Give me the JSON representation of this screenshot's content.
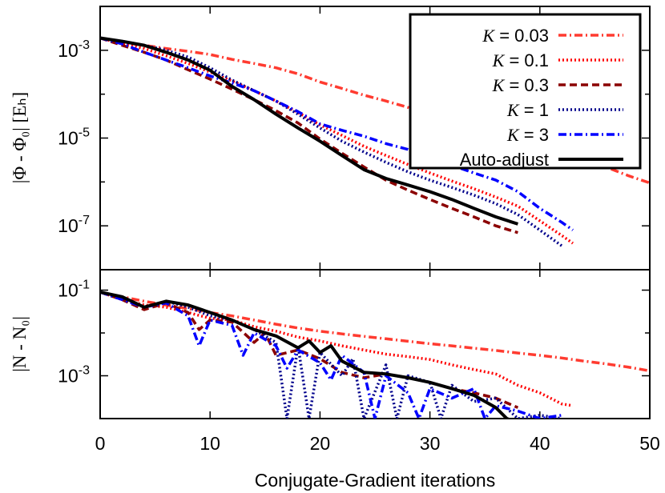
{
  "chart_data": [
    {
      "type": "line",
      "title": "",
      "ylabel": "|Φ - Φ₀| [Eₕ]",
      "yscale": "log",
      "xlim": [
        0,
        50
      ],
      "ylim": [
        1e-08,
        0.01
      ],
      "ytick_labels": [
        "10-3",
        "10-5",
        "10-7"
      ],
      "ytick_values": [
        0.001,
        1e-05,
        1e-07
      ],
      "legend_position": "top-right",
      "series": [
        {
          "name": "K = 0.03",
          "color": "#ff3b30",
          "dash": "dash-dot",
          "x": [
            0,
            2,
            4,
            6,
            8,
            10,
            12,
            14,
            16,
            18,
            20,
            22,
            24,
            26,
            28,
            30,
            32,
            34,
            36,
            38,
            40,
            42,
            44,
            46,
            48,
            50
          ],
          "y": [
            0.0019,
            0.0015,
            0.0013,
            0.0011,
            0.00095,
            0.0008,
            0.00062,
            0.0005,
            0.0004,
            0.00029,
            0.00019,
            0.000135,
            9.5e-05,
            7e-05,
            5e-05,
            3.5e-05,
            2.7e-05,
            2e-05,
            1.45e-05,
            1.05e-05,
            7.5e-06,
            5.3e-06,
            3.5e-06,
            2.2e-06,
            1.4e-06,
            9.5e-07
          ]
        },
        {
          "name": "K = 0.1",
          "color": "#ff0000",
          "dash": "dotted",
          "x": [
            0,
            2,
            4,
            6,
            8,
            10,
            12,
            14,
            16,
            18,
            20,
            22,
            24,
            26,
            28,
            30,
            32,
            34,
            36,
            38,
            40,
            42,
            43
          ],
          "y": [
            0.0019,
            0.0014,
            0.0011,
            0.00075,
            0.0005,
            0.00032,
            0.0002,
            0.00012,
            7e-05,
            3.8e-05,
            2e-05,
            1.15e-05,
            6.5e-06,
            4e-06,
            2.5e-06,
            1.6e-06,
            1.05e-06,
            7e-07,
            4.5e-07,
            2.8e-07,
            1.3e-07,
            6e-08,
            4e-08
          ]
        },
        {
          "name": "K = 0.3",
          "color": "#8b0000",
          "dash": "dashed",
          "x": [
            0,
            2,
            4,
            6,
            8,
            10,
            12,
            14,
            16,
            18,
            20,
            22,
            24,
            26,
            28,
            30,
            32,
            34,
            36,
            38
          ],
          "y": [
            0.0019,
            0.0013,
            0.0009,
            0.0006,
            0.00036,
            0.00022,
            0.00013,
            7.5e-05,
            4.2e-05,
            2.2e-05,
            9.5e-06,
            4.5e-06,
            2.2e-06,
            1.1e-06,
            6.5e-07,
            4e-07,
            2.5e-07,
            1.6e-07,
            1e-07,
            7e-08
          ]
        },
        {
          "name": "K = 1",
          "color": "#00008b",
          "dash": "dotted",
          "x": [
            0,
            2,
            4,
            6,
            8,
            10,
            12,
            14,
            16,
            18,
            20,
            22,
            24,
            26,
            28,
            30,
            32,
            34,
            36,
            38,
            40,
            42
          ],
          "y": [
            0.0019,
            0.0016,
            0.0013,
            0.001,
            0.0007,
            0.0004,
            0.00021,
            0.00012,
            7e-05,
            3.5e-05,
            1.7e-05,
            8.5e-06,
            4.8e-06,
            2.8e-06,
            1.7e-06,
            1.1e-06,
            7.5e-07,
            5e-07,
            3.2e-07,
            1.8e-07,
            8e-08,
            3.5e-08
          ]
        },
        {
          "name": "K = 3",
          "color": "#0000ff",
          "dash": "dash-dot",
          "x": [
            0,
            2,
            4,
            6,
            8,
            10,
            12,
            14,
            16,
            18,
            20,
            22,
            24,
            26,
            28,
            30,
            32,
            34,
            36,
            38,
            40,
            42,
            43
          ],
          "y": [
            0.0019,
            0.0014,
            0.0009,
            0.0006,
            0.0004,
            0.00026,
            0.00018,
            0.00012,
            7e-05,
            4e-05,
            2.1e-05,
            1.5e-05,
            1.1e-05,
            7.5e-06,
            5.5e-06,
            3.5e-06,
            2.4e-06,
            1.6e-06,
            1.1e-06,
            6e-07,
            2.5e-07,
            1.2e-07,
            8e-08
          ]
        },
        {
          "name": "Auto-adjust",
          "color": "#000000",
          "dash": "solid",
          "x": [
            0,
            2,
            4,
            6,
            8,
            10,
            12,
            14,
            16,
            18,
            20,
            22,
            24,
            26,
            28,
            30,
            32,
            34,
            36,
            38
          ],
          "y": [
            0.0019,
            0.0016,
            0.0013,
            0.0009,
            0.0006,
            0.00035,
            0.00015,
            7.5e-05,
            3.5e-05,
            1.7e-05,
            8.5e-06,
            4e-06,
            1.9e-06,
            1.2e-06,
            8.5e-07,
            6e-07,
            4e-07,
            2.5e-07,
            1.6e-07,
            1.1e-07
          ]
        }
      ]
    },
    {
      "type": "line",
      "title": "",
      "xlabel": "Conjugate-Gradient iterations",
      "ylabel": "|N - N₀|",
      "yscale": "log",
      "xlim": [
        0,
        50
      ],
      "ylim": [
        0.0001,
        0.3
      ],
      "xtick_labels": [
        "0",
        "10",
        "20",
        "30",
        "40",
        "50"
      ],
      "xtick_values": [
        0,
        10,
        20,
        30,
        40,
        50
      ],
      "ytick_labels": [
        "10-1",
        "10-3"
      ],
      "ytick_values": [
        0.1,
        0.001
      ],
      "series": [
        {
          "name": "K = 0.03",
          "color": "#ff3b30",
          "dash": "dash-dot",
          "x": [
            0,
            2,
            4,
            6,
            8,
            10,
            12,
            14,
            16,
            18,
            20,
            22,
            24,
            26,
            28,
            30,
            32,
            34,
            36,
            38,
            40,
            42,
            44,
            46,
            48,
            50
          ],
          "y": [
            0.09,
            0.07,
            0.055,
            0.045,
            0.037,
            0.03,
            0.025,
            0.02,
            0.016,
            0.013,
            0.011,
            0.0095,
            0.0083,
            0.0073,
            0.0064,
            0.0056,
            0.005,
            0.0044,
            0.0039,
            0.0034,
            0.003,
            0.0026,
            0.0022,
            0.0019,
            0.0016,
            0.0013
          ]
        },
        {
          "name": "K = 0.1",
          "color": "#ff0000",
          "dash": "dotted",
          "x": [
            0,
            2,
            4,
            6,
            8,
            10,
            12,
            14,
            16,
            18,
            20,
            22,
            24,
            26,
            28,
            30,
            32,
            34,
            36,
            38,
            40,
            42,
            43
          ],
          "y": [
            0.09,
            0.06,
            0.045,
            0.04,
            0.03,
            0.022,
            0.02,
            0.014,
            0.011,
            0.008,
            0.0065,
            0.005,
            0.004,
            0.0032,
            0.0028,
            0.0024,
            0.0018,
            0.0014,
            0.0011,
            0.0006,
            0.0004,
            0.00022,
            0.0002
          ]
        },
        {
          "name": "K = 0.3",
          "color": "#8b0000",
          "dash": "dashed",
          "x": [
            0,
            2,
            4,
            6,
            8,
            9,
            10,
            12,
            14,
            15,
            16,
            18,
            20,
            22,
            24,
            26,
            28,
            30,
            32,
            34,
            36,
            38
          ],
          "y": [
            0.09,
            0.06,
            0.035,
            0.05,
            0.03,
            0.012,
            0.02,
            0.018,
            0.006,
            0.01,
            0.003,
            0.004,
            0.0025,
            0.0012,
            0.0009,
            0.0011,
            0.0009,
            0.0007,
            0.0005,
            0.0004,
            0.0003,
            0.00018
          ]
        },
        {
          "name": "K = 1",
          "color": "#00008b",
          "dash": "dotted",
          "x": [
            0,
            2,
            4,
            6,
            8,
            10,
            12,
            14,
            16,
            17,
            18,
            19,
            20,
            22,
            23,
            24,
            26,
            27,
            28,
            30,
            31,
            32,
            34,
            36,
            38,
            40,
            42
          ],
          "y": [
            0.09,
            0.065,
            0.04,
            0.055,
            0.04,
            0.025,
            0.02,
            0.012,
            0.006,
            0.0001,
            0.005,
            0.0001,
            0.0035,
            0.001,
            0.0025,
            0.0001,
            0.0018,
            0.0001,
            0.001,
            0.0007,
            0.0001,
            0.0006,
            0.00025,
            0.0003,
            0.0001,
            0.00012,
            0.0001
          ]
        },
        {
          "name": "K = 3",
          "color": "#0000ff",
          "dash": "dash-dot",
          "x": [
            0,
            2,
            4,
            6,
            8,
            9,
            10,
            12,
            13,
            14,
            16,
            17,
            18,
            20,
            21,
            22,
            24,
            25,
            26,
            28,
            29,
            30,
            32,
            34,
            35,
            36,
            38,
            40,
            42
          ],
          "y": [
            0.09,
            0.06,
            0.04,
            0.05,
            0.025,
            0.005,
            0.02,
            0.015,
            0.003,
            0.01,
            0.005,
            0.0015,
            0.004,
            0.002,
            0.0008,
            0.003,
            0.0012,
            0.0001,
            0.001,
            0.0004,
            0.0001,
            0.0005,
            0.0003,
            0.0005,
            0.0001,
            0.0002,
            0.00015,
            0.0001,
            0.00012
          ]
        },
        {
          "name": "Auto-adjust",
          "color": "#000000",
          "dash": "solid",
          "x": [
            0,
            2,
            4,
            6,
            8,
            10,
            12,
            14,
            16,
            18,
            19,
            20,
            21,
            22,
            24,
            26,
            28,
            30,
            32,
            34,
            36,
            37,
            38
          ],
          "y": [
            0.09,
            0.07,
            0.04,
            0.055,
            0.045,
            0.03,
            0.02,
            0.012,
            0.0085,
            0.0045,
            0.0065,
            0.0035,
            0.005,
            0.0022,
            0.0012,
            0.0011,
            0.0009,
            0.0007,
            0.0005,
            0.00035,
            0.00018,
            0.0001,
            8e-05
          ]
        }
      ]
    }
  ]
}
